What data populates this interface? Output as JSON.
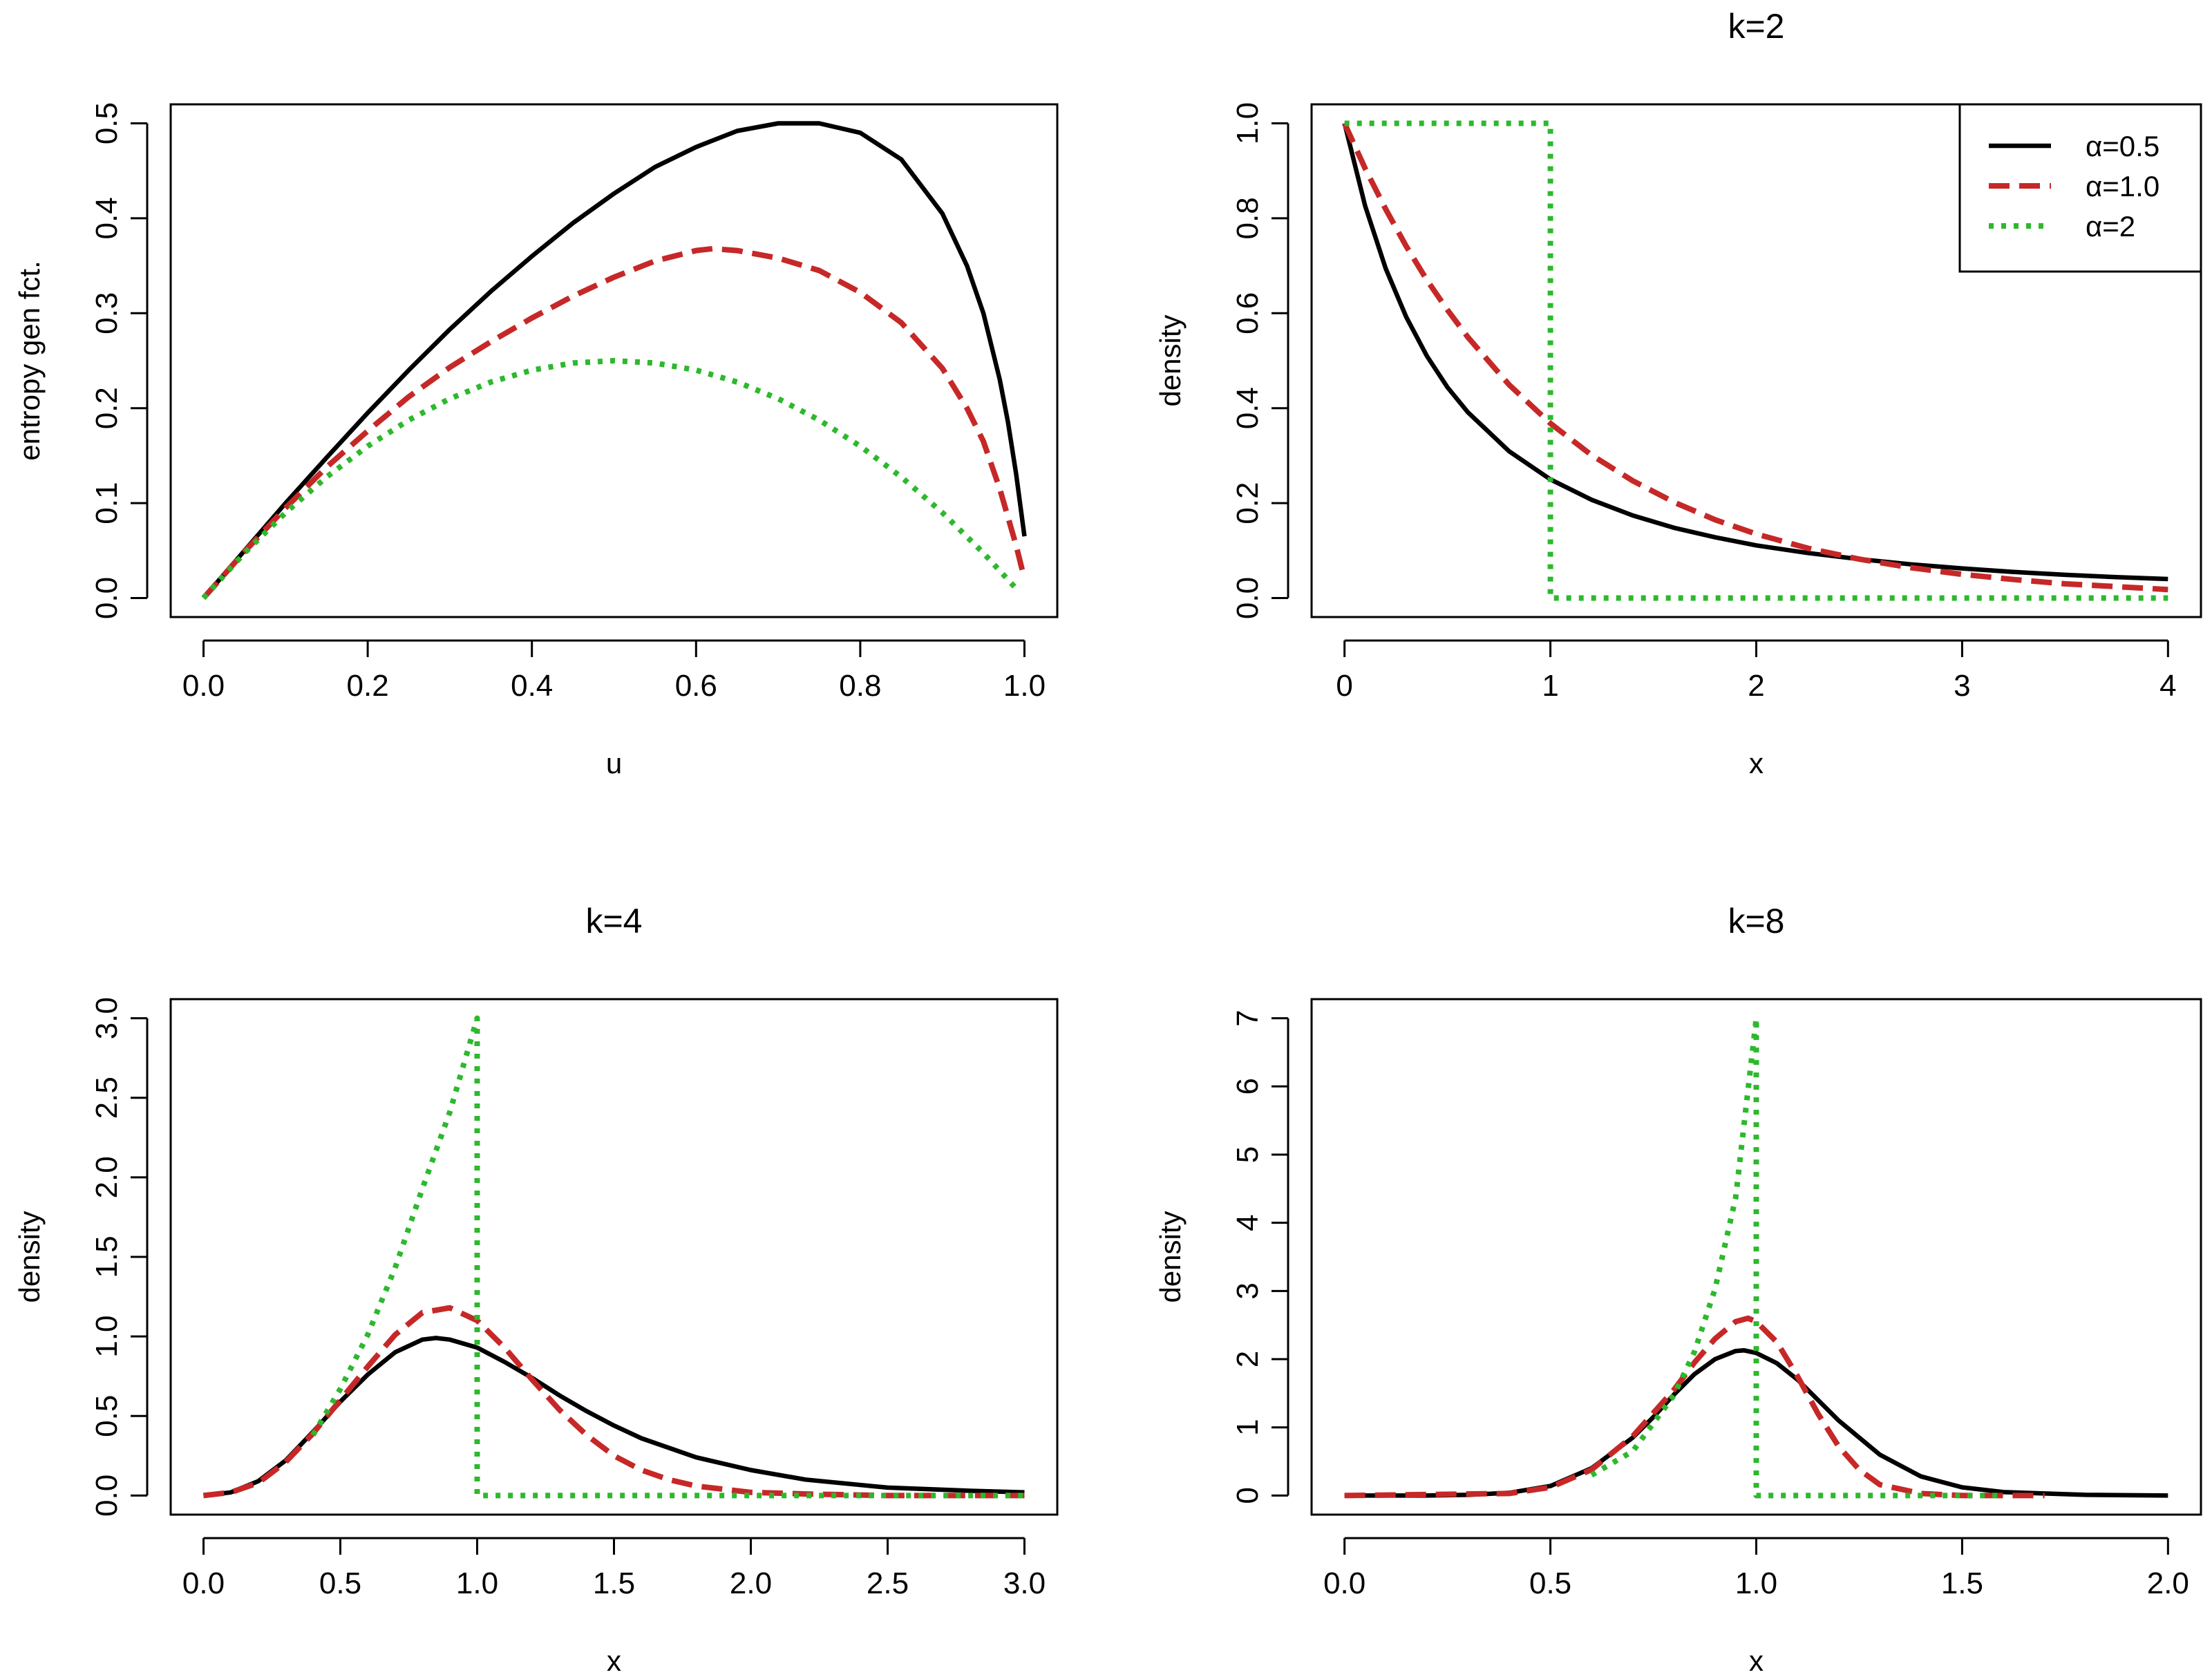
{
  "chart_data": [
    {
      "id": "panel-entropy",
      "type": "line",
      "title": "",
      "xlabel": "u",
      "ylabel": "entropy gen fct.",
      "xlim": [
        -0.04,
        1.04
      ],
      "ylim": [
        -0.02,
        0.52
      ],
      "xticks": [
        0.0,
        0.2,
        0.4,
        0.6,
        0.8,
        1.0
      ],
      "xtick_labels": [
        "0.0",
        "0.2",
        "0.4",
        "0.6",
        "0.8",
        "1.0"
      ],
      "yticks": [
        0.0,
        0.1,
        0.2,
        0.3,
        0.4,
        0.5
      ],
      "ytick_labels": [
        "0.0",
        "0.1",
        "0.2",
        "0.3",
        "0.4",
        "0.5"
      ],
      "series": [
        {
          "name": "α=0.5",
          "style": "solid",
          "color": "#000000",
          "x": [
            0,
            0.05,
            0.1,
            0.15,
            0.2,
            0.25,
            0.3,
            0.35,
            0.4,
            0.45,
            0.5,
            0.55,
            0.6,
            0.65,
            0.7,
            0.75,
            0.8,
            0.85,
            0.9,
            0.93,
            0.95,
            0.97,
            0.98,
            0.99,
            1.0
          ],
          "y": [
            0,
            0.05,
            0.1,
            0.148,
            0.195,
            0.24,
            0.283,
            0.323,
            0.36,
            0.395,
            0.426,
            0.454,
            0.475,
            0.492,
            0.5,
            0.5,
            0.49,
            0.462,
            0.405,
            0.35,
            0.3,
            0.23,
            0.185,
            0.13,
            0.065
          ]
        },
        {
          "name": "α=1.0",
          "style": "dashed",
          "color": "#c62828",
          "x": [
            0,
            0.05,
            0.1,
            0.15,
            0.2,
            0.25,
            0.3,
            0.35,
            0.4,
            0.45,
            0.5,
            0.55,
            0.6,
            0.62,
            0.65,
            0.7,
            0.75,
            0.8,
            0.85,
            0.9,
            0.93,
            0.95,
            0.97,
            0.99,
            1.0
          ],
          "y": [
            0,
            0.049,
            0.095,
            0.138,
            0.176,
            0.212,
            0.243,
            0.27,
            0.295,
            0.318,
            0.338,
            0.355,
            0.366,
            0.368,
            0.366,
            0.358,
            0.345,
            0.322,
            0.29,
            0.242,
            0.2,
            0.165,
            0.115,
            0.055,
            0.02
          ]
        },
        {
          "name": "α=2",
          "style": "dotted",
          "color": "#2db82d",
          "x": [
            0,
            0.05,
            0.1,
            0.15,
            0.2,
            0.25,
            0.3,
            0.35,
            0.4,
            0.45,
            0.5,
            0.55,
            0.6,
            0.65,
            0.7,
            0.75,
            0.8,
            0.85,
            0.9,
            0.95,
            0.99
          ],
          "y": [
            0,
            0.0475,
            0.09,
            0.1275,
            0.16,
            0.1875,
            0.21,
            0.2275,
            0.24,
            0.2475,
            0.25,
            0.2475,
            0.24,
            0.2275,
            0.21,
            0.1875,
            0.16,
            0.1275,
            0.09,
            0.0475,
            0.0099
          ]
        }
      ]
    },
    {
      "id": "panel-k2",
      "type": "line",
      "title": "k=2",
      "xlabel": "x",
      "ylabel": "density",
      "xlim": [
        -0.16,
        4.16
      ],
      "ylim": [
        -0.04,
        1.04
      ],
      "xticks": [
        0,
        1,
        2,
        3,
        4
      ],
      "xtick_labels": [
        "0",
        "1",
        "2",
        "3",
        "4"
      ],
      "yticks": [
        0.0,
        0.2,
        0.4,
        0.6,
        0.8,
        1.0
      ],
      "ytick_labels": [
        "0.0",
        "0.2",
        "0.4",
        "0.6",
        "0.8",
        "1.0"
      ],
      "legend": {
        "position": "top-right",
        "entries": [
          {
            "label": "α=0.5",
            "style": "solid",
            "color": "#000000"
          },
          {
            "label": "α=1.0",
            "style": "dashed",
            "color": "#c62828"
          },
          {
            "label": "α=2",
            "style": "dotted",
            "color": "#2db82d"
          }
        ]
      },
      "series": [
        {
          "name": "α=0.5",
          "style": "solid",
          "color": "#000000",
          "x": [
            0,
            0.1,
            0.2,
            0.3,
            0.4,
            0.5,
            0.6,
            0.8,
            1.0,
            1.2,
            1.4,
            1.6,
            1.8,
            2.0,
            2.25,
            2.5,
            2.75,
            3.0,
            3.25,
            3.5,
            3.75,
            4.0
          ],
          "y": [
            1.0,
            0.826,
            0.694,
            0.592,
            0.51,
            0.444,
            0.391,
            0.309,
            0.25,
            0.207,
            0.174,
            0.148,
            0.128,
            0.111,
            0.095,
            0.082,
            0.071,
            0.0625,
            0.055,
            0.049,
            0.044,
            0.04
          ]
        },
        {
          "name": "α=1.0",
          "style": "dashed",
          "color": "#c62828",
          "x": [
            0,
            0.1,
            0.2,
            0.3,
            0.4,
            0.5,
            0.6,
            0.8,
            1.0,
            1.2,
            1.4,
            1.6,
            1.8,
            2.0,
            2.25,
            2.5,
            2.75,
            3.0,
            3.25,
            3.5,
            3.75,
            4.0
          ],
          "y": [
            1.0,
            0.905,
            0.819,
            0.741,
            0.67,
            0.607,
            0.549,
            0.449,
            0.368,
            0.301,
            0.247,
            0.202,
            0.165,
            0.135,
            0.105,
            0.082,
            0.064,
            0.05,
            0.039,
            0.03,
            0.024,
            0.018
          ]
        },
        {
          "name": "α=2",
          "style": "dotted",
          "color": "#2db82d",
          "x": [
            0,
            1.0,
            1.0,
            4.0
          ],
          "y": [
            1.0,
            1.0,
            0.0,
            0.0
          ]
        }
      ]
    },
    {
      "id": "panel-k4",
      "type": "line",
      "title": "k=4",
      "xlabel": "x",
      "ylabel": "density",
      "xlim": [
        -0.12,
        3.12
      ],
      "ylim": [
        -0.12,
        3.12
      ],
      "xticks": [
        0.0,
        0.5,
        1.0,
        1.5,
        2.0,
        2.5,
        3.0
      ],
      "xtick_labels": [
        "0.0",
        "0.5",
        "1.0",
        "1.5",
        "2.0",
        "2.5",
        "3.0"
      ],
      "yticks": [
        0.0,
        0.5,
        1.0,
        1.5,
        2.0,
        2.5,
        3.0
      ],
      "ytick_labels": [
        "0.0",
        "0.5",
        "1.0",
        "1.5",
        "2.0",
        "2.5",
        "3.0"
      ],
      "series": [
        {
          "name": "α=0.5",
          "style": "solid",
          "color": "#000000",
          "x": [
            0,
            0.1,
            0.2,
            0.3,
            0.4,
            0.5,
            0.6,
            0.7,
            0.8,
            0.85,
            0.9,
            1.0,
            1.1,
            1.2,
            1.3,
            1.4,
            1.5,
            1.6,
            1.8,
            2.0,
            2.2,
            2.5,
            2.8,
            3.0
          ],
          "y": [
            0,
            0.02,
            0.09,
            0.22,
            0.4,
            0.59,
            0.76,
            0.9,
            0.98,
            0.99,
            0.98,
            0.93,
            0.84,
            0.74,
            0.63,
            0.53,
            0.44,
            0.36,
            0.24,
            0.16,
            0.1,
            0.05,
            0.03,
            0.02
          ]
        },
        {
          "name": "α=1.0",
          "style": "dashed",
          "color": "#c62828",
          "x": [
            0,
            0.1,
            0.2,
            0.3,
            0.4,
            0.5,
            0.6,
            0.7,
            0.8,
            0.9,
            1.0,
            1.1,
            1.2,
            1.3,
            1.4,
            1.5,
            1.6,
            1.7,
            1.8,
            2.0,
            2.2,
            2.5,
            3.0
          ],
          "y": [
            0,
            0.02,
            0.08,
            0.21,
            0.39,
            0.6,
            0.81,
            1.01,
            1.15,
            1.18,
            1.1,
            0.93,
            0.73,
            0.54,
            0.38,
            0.25,
            0.16,
            0.1,
            0.06,
            0.02,
            0.01,
            0.0,
            0.0
          ]
        },
        {
          "name": "α=2",
          "style": "dotted",
          "color": "#2db82d",
          "x": [
            0.4,
            0.5,
            0.6,
            0.7,
            0.8,
            0.9,
            1.0,
            1.0,
            3.0
          ],
          "y": [
            0.38,
            0.67,
            1.01,
            1.43,
            1.93,
            2.41,
            3.0,
            0.0,
            0.0
          ]
        }
      ]
    },
    {
      "id": "panel-k8",
      "type": "line",
      "title": "k=8",
      "xlabel": "x",
      "ylabel": "density",
      "xlim": [
        -0.08,
        2.08
      ],
      "ylim": [
        -0.28,
        7.28
      ],
      "xticks": [
        0.0,
        0.5,
        1.0,
        1.5,
        2.0
      ],
      "xtick_labels": [
        "0.0",
        "0.5",
        "1.0",
        "1.5",
        "2.0"
      ],
      "yticks": [
        0,
        1,
        2,
        3,
        4,
        5,
        6,
        7
      ],
      "ytick_labels": [
        "0",
        "1",
        "2",
        "3",
        "4",
        "5",
        "6",
        "7"
      ],
      "series": [
        {
          "name": "α=0.5",
          "style": "solid",
          "color": "#000000",
          "x": [
            0,
            0.2,
            0.3,
            0.4,
            0.5,
            0.6,
            0.7,
            0.75,
            0.8,
            0.85,
            0.9,
            0.95,
            0.97,
            1.0,
            1.05,
            1.1,
            1.15,
            1.2,
            1.3,
            1.4,
            1.5,
            1.6,
            1.8,
            2.0
          ],
          "y": [
            0,
            0,
            0.01,
            0.04,
            0.14,
            0.4,
            0.85,
            1.15,
            1.48,
            1.78,
            2.0,
            2.12,
            2.13,
            2.09,
            1.94,
            1.7,
            1.4,
            1.1,
            0.6,
            0.28,
            0.12,
            0.05,
            0.01,
            0.0
          ]
        },
        {
          "name": "α=1.0",
          "style": "dashed",
          "color": "#c62828",
          "x": [
            0,
            0.4,
            0.5,
            0.6,
            0.7,
            0.8,
            0.85,
            0.9,
            0.95,
            0.98,
            1.0,
            1.05,
            1.1,
            1.15,
            1.2,
            1.25,
            1.3,
            1.4,
            1.5,
            1.7
          ],
          "y": [
            0,
            0.03,
            0.12,
            0.38,
            0.87,
            1.55,
            1.95,
            2.3,
            2.55,
            2.6,
            2.55,
            2.25,
            1.75,
            1.2,
            0.72,
            0.38,
            0.16,
            0.03,
            0.0,
            0.0
          ]
        },
        {
          "name": "α=2",
          "style": "dotted",
          "color": "#2db82d",
          "x": [
            0.6,
            0.7,
            0.8,
            0.85,
            0.9,
            0.95,
            1.0,
            1.0,
            1.6
          ],
          "y": [
            0.3,
            0.65,
            1.47,
            2.11,
            3.03,
            4.37,
            7.0,
            0.0,
            0.0
          ]
        }
      ]
    }
  ]
}
